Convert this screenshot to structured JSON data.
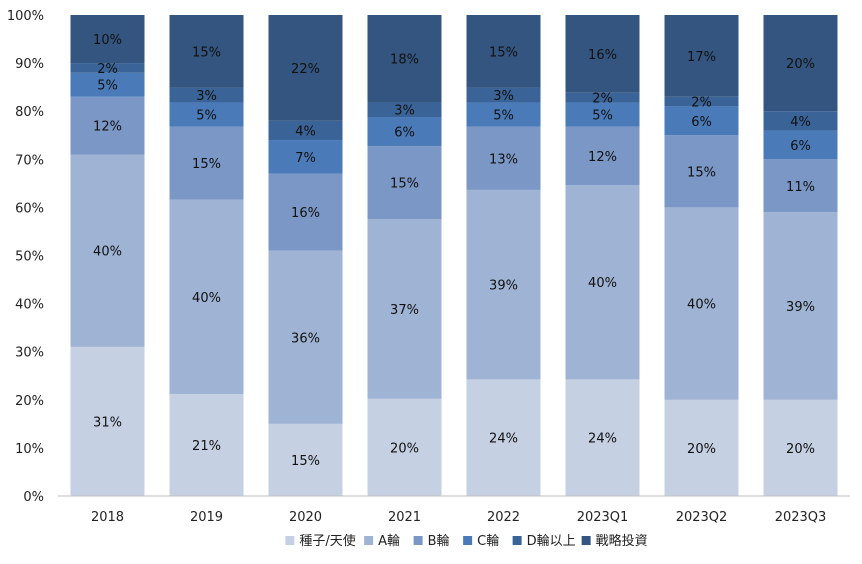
{
  "chart_data": {
    "type": "bar",
    "stacked": true,
    "normalized": true,
    "categories": [
      "2018",
      "2019",
      "2020",
      "2021",
      "2022",
      "2023Q1",
      "2023Q2",
      "2023Q3"
    ],
    "yticks": [
      "0%",
      "10%",
      "20%",
      "30%",
      "40%",
      "50%",
      "60%",
      "70%",
      "80%",
      "90%",
      "100%"
    ],
    "ylim": [
      0,
      100
    ],
    "grid": false,
    "legend_position": "bottom",
    "series": [
      {
        "name": "種子/天使",
        "color": "#c6d0e3",
        "values": [
          31,
          21,
          15,
          20,
          24,
          24,
          20,
          20
        ],
        "labels": [
          "31%",
          "21%",
          "15%",
          "20%",
          "24%",
          "24%",
          "20%",
          "20%"
        ]
      },
      {
        "name": "A輪",
        "color": "#9fb3d4",
        "values": [
          40,
          40,
          36,
          37,
          39,
          40,
          40,
          39
        ],
        "labels": [
          "40%",
          "40%",
          "36%",
          "37%",
          "39%",
          "40%",
          "40%",
          "39%"
        ]
      },
      {
        "name": "B輪",
        "color": "#7a97c6",
        "values": [
          12,
          15,
          16,
          15,
          13,
          12,
          15,
          11
        ],
        "labels": [
          "12%",
          "15%",
          "16%",
          "15%",
          "13%",
          "12%",
          "15%",
          "11%"
        ]
      },
      {
        "name": "C輪",
        "color": "#4a7ab8",
        "values": [
          5,
          5,
          7,
          6,
          5,
          5,
          6,
          6
        ],
        "labels": [
          "5%",
          "5%",
          "7%",
          "6%",
          "5%",
          "5%",
          "6%",
          "6%"
        ]
      },
      {
        "name": "D輪以上",
        "color": "#3a6398",
        "values": [
          2,
          3,
          4,
          3,
          3,
          2,
          2,
          4
        ],
        "labels": [
          "2%",
          "3%",
          "4%",
          "3%",
          "3%",
          "2%",
          "2%",
          "4%"
        ]
      },
      {
        "name": "戰略投資",
        "color": "#33557f",
        "values": [
          10,
          15,
          22,
          18,
          15,
          16,
          17,
          20
        ],
        "labels": [
          "10%",
          "15%",
          "22%",
          "18%",
          "15%",
          "16%",
          "17%",
          "20%"
        ]
      }
    ]
  }
}
